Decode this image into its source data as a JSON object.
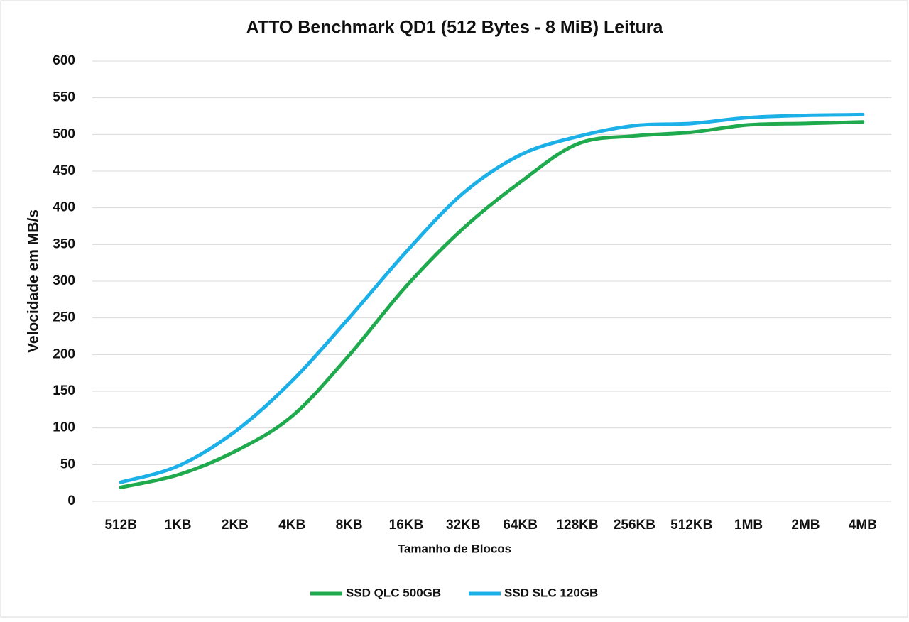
{
  "chart_data": {
    "type": "line",
    "title": "ATTO Benchmark QD1 (512 Bytes - 8 MiB) Leitura",
    "x_label": "Tamanho de Blocos",
    "y_label": "Velocidade em MB/s",
    "categories": [
      "512B",
      "1KB",
      "2KB",
      "4KB",
      "8KB",
      "16KB",
      "32KB",
      "64KB",
      "128KB",
      "256KB",
      "512KB",
      "1MB",
      "2MB",
      "4MB"
    ],
    "series": [
      {
        "name": "SSD QLC 500GB",
        "color": "#1faa4e",
        "values": [
          19,
          36,
          68,
          116,
          199,
          293,
          372,
          435,
          487,
          498,
          503,
          513,
          515,
          517
        ]
      },
      {
        "name": "SSD SLC 120GB",
        "color": "#1cb0e8",
        "values": [
          26,
          48,
          95,
          164,
          250,
          340,
          420,
          472,
          497,
          512,
          515,
          523,
          526,
          527
        ]
      }
    ],
    "ylim": [
      0,
      600
    ],
    "yticks": [
      0,
      50,
      100,
      150,
      200,
      250,
      300,
      350,
      400,
      450,
      500,
      550,
      600
    ],
    "grid": true,
    "legend": "bottom"
  }
}
